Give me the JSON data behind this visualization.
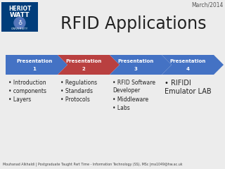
{
  "title": "RFID Applications",
  "date_label": "March/2014",
  "background_color": "#ececec",
  "arrows": [
    {
      "label_line1": "Presentation",
      "label_line2": "1",
      "color": "#4472c4"
    },
    {
      "label_line1": "Presentation",
      "label_line2": "2",
      "color": "#b94040"
    },
    {
      "label_line1": "Presentation",
      "label_line2": "3",
      "color": "#4472c4"
    },
    {
      "label_line1": "Presentation",
      "label_line2": "4",
      "color": "#4472c4"
    }
  ],
  "bullet_groups": [
    [
      "Introduction",
      "components",
      "Layers"
    ],
    [
      "Regulations",
      "Standards",
      "Protocols"
    ],
    [
      "RFID Software\nDeveloper",
      "Middleware",
      "Labs"
    ],
    [
      "RIFIDI\nEmulator LAB"
    ]
  ],
  "footer": "Mouhanad Alkhaldi | Postgraduate Taught Part Time - Information Technology (SS), MSc |ma1049@hw.ac.uk",
  "logo_bg": "#003d7a",
  "logo_text_color": "#ffffff"
}
